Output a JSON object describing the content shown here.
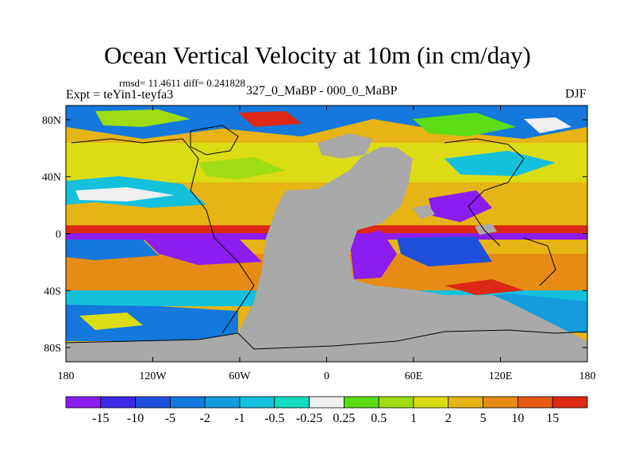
{
  "chart_data": {
    "type": "heatmap",
    "title": "Ocean Vertical Velocity at 10m (in cm/day)",
    "stats_text": "rmsd= 11.4611 diff= 0.241828",
    "experiment_text": "Expt = teYin1-teyfa3",
    "center_text": "327_0_MaBP - 000_0_MaBP",
    "season": "DJF",
    "x_axis": {
      "range": [
        -180,
        180
      ],
      "ticks": [
        {
          "value": -180,
          "label": "180"
        },
        {
          "value": -120,
          "label": "120W"
        },
        {
          "value": -60,
          "label": "60W"
        },
        {
          "value": 0,
          "label": "0"
        },
        {
          "value": 60,
          "label": "60E"
        },
        {
          "value": 120,
          "label": "120E"
        },
        {
          "value": 180,
          "label": "180"
        }
      ]
    },
    "y_axis": {
      "range": [
        -90,
        90
      ],
      "ticks": [
        {
          "value": 80,
          "label": "80N"
        },
        {
          "value": 40,
          "label": "40N"
        },
        {
          "value": 0,
          "label": "0"
        },
        {
          "value": -40,
          "label": "40S"
        },
        {
          "value": -80,
          "label": "80S"
        }
      ]
    },
    "colorbar": {
      "levels": [
        "-15",
        "-10",
        "-5",
        "-2",
        "-1",
        "-0.5",
        "-0.25",
        "0.25",
        "0.5",
        "1",
        "2",
        "5",
        "10",
        "15"
      ],
      "colors": [
        "#8c1cf0",
        "#3c28e6",
        "#1e50dc",
        "#1478dc",
        "#149cdc",
        "#14c0dc",
        "#14dcc0",
        "#f0f0f0",
        "#5cdc14",
        "#a0dc14",
        "#dcdc14",
        "#e6b414",
        "#e68c14",
        "#e65a14",
        "#dc2814"
      ]
    },
    "land_color": "#a9a9a9"
  }
}
